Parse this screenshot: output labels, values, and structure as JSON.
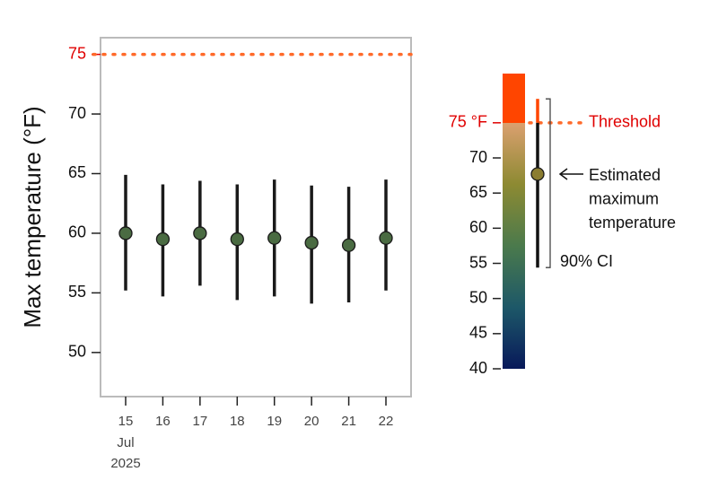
{
  "chart_data": {
    "type": "errorpoint",
    "y_label": "Max temperature (°F)",
    "categories": [
      "15",
      "16",
      "17",
      "18",
      "19",
      "20",
      "21",
      "22"
    ],
    "x_month": "Jul",
    "x_year": "2025",
    "series": [
      {
        "color": "#4a6b42",
        "values": [
          60.0,
          59.5,
          60.0,
          59.5,
          59.6,
          59.2,
          59.0,
          59.6
        ],
        "lower": [
          55.2,
          54.7,
          55.6,
          54.4,
          54.7,
          54.1,
          54.2,
          55.2
        ],
        "upper": [
          64.9,
          64.1,
          64.4,
          64.1,
          64.5,
          64.0,
          63.9,
          64.5
        ]
      }
    ],
    "ylim": [
      46.3,
      76.4
    ],
    "yticks": [
      50,
      55,
      60,
      65,
      70
    ],
    "threshold": {
      "value": 75,
      "color": "#ff6a2a",
      "label_color": "#e00000"
    },
    "legend": {
      "colorbar_lim": [
        40,
        82
      ],
      "colorbar_ticks": [
        40,
        45,
        50,
        55,
        60,
        65,
        70
      ],
      "colorbar_colors": [
        "#08195a",
        "#1d5868",
        "#4b7a4c",
        "#8d8a32",
        "#dba070"
      ],
      "above_color": "#ff4500",
      "threshold_label": "75 °F",
      "threshold_text": "Threshold",
      "example": {
        "value": 67.7,
        "lower": 54.4,
        "upper": 78.4,
        "color": "#8b7d30",
        "label_lines": [
          "Estimated",
          "maximum",
          "temperature"
        ],
        "ci_label": "90% CI"
      }
    }
  }
}
